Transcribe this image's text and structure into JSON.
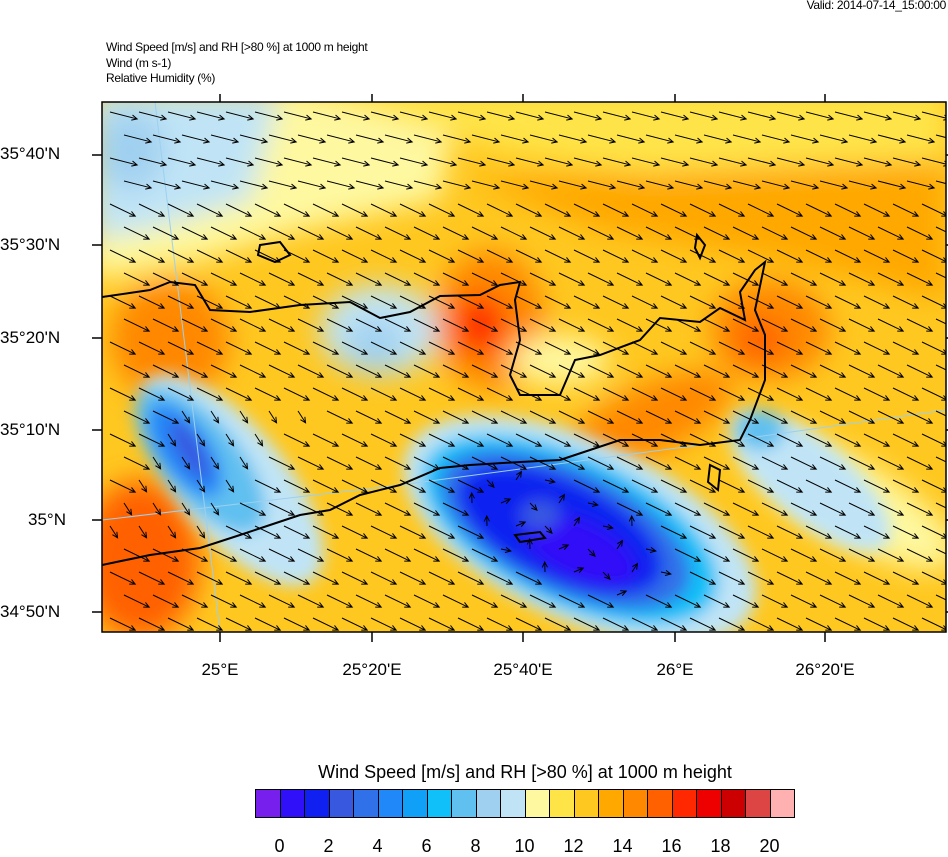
{
  "valid_time": "Valid: 2014-07-14_15:00:00",
  "header": {
    "line1": "Wind Speed [m/s] and RH [>80 %] at 1000 m height",
    "line2": "Wind   (m s-1)",
    "line3": "Relative Humidity   (%)"
  },
  "lat_labels": [
    "35°40'N",
    "35°30'N",
    "35°20'N",
    "35°10'N",
    "35°N",
    "34°50'N"
  ],
  "lon_labels": [
    "25°E",
    "25°20'E",
    "25°40'E",
    "26°E",
    "26°20'E"
  ],
  "colorbar": {
    "title": "Wind Speed [m/s] and RH [>80 %] at 1000 m height",
    "labels": [
      "0",
      "2",
      "4",
      "6",
      "8",
      "10",
      "12",
      "14",
      "16",
      "18",
      "20"
    ],
    "colors": [
      "#7720ee",
      "#3010f8",
      "#1020f0",
      "#3858e0",
      "#3070e8",
      "#2088f8",
      "#10a0f8",
      "#10c0f8",
      "#60c0f0",
      "#a0d0f0",
      "#c0e4f6",
      "#fef8a0",
      "#ffe448",
      "#ffc820",
      "#ffa800",
      "#ff8800",
      "#ff6000",
      "#ff2800",
      "#ee0000",
      "#cc0000",
      "#dd4444",
      "#ffb0b0"
    ]
  }
}
